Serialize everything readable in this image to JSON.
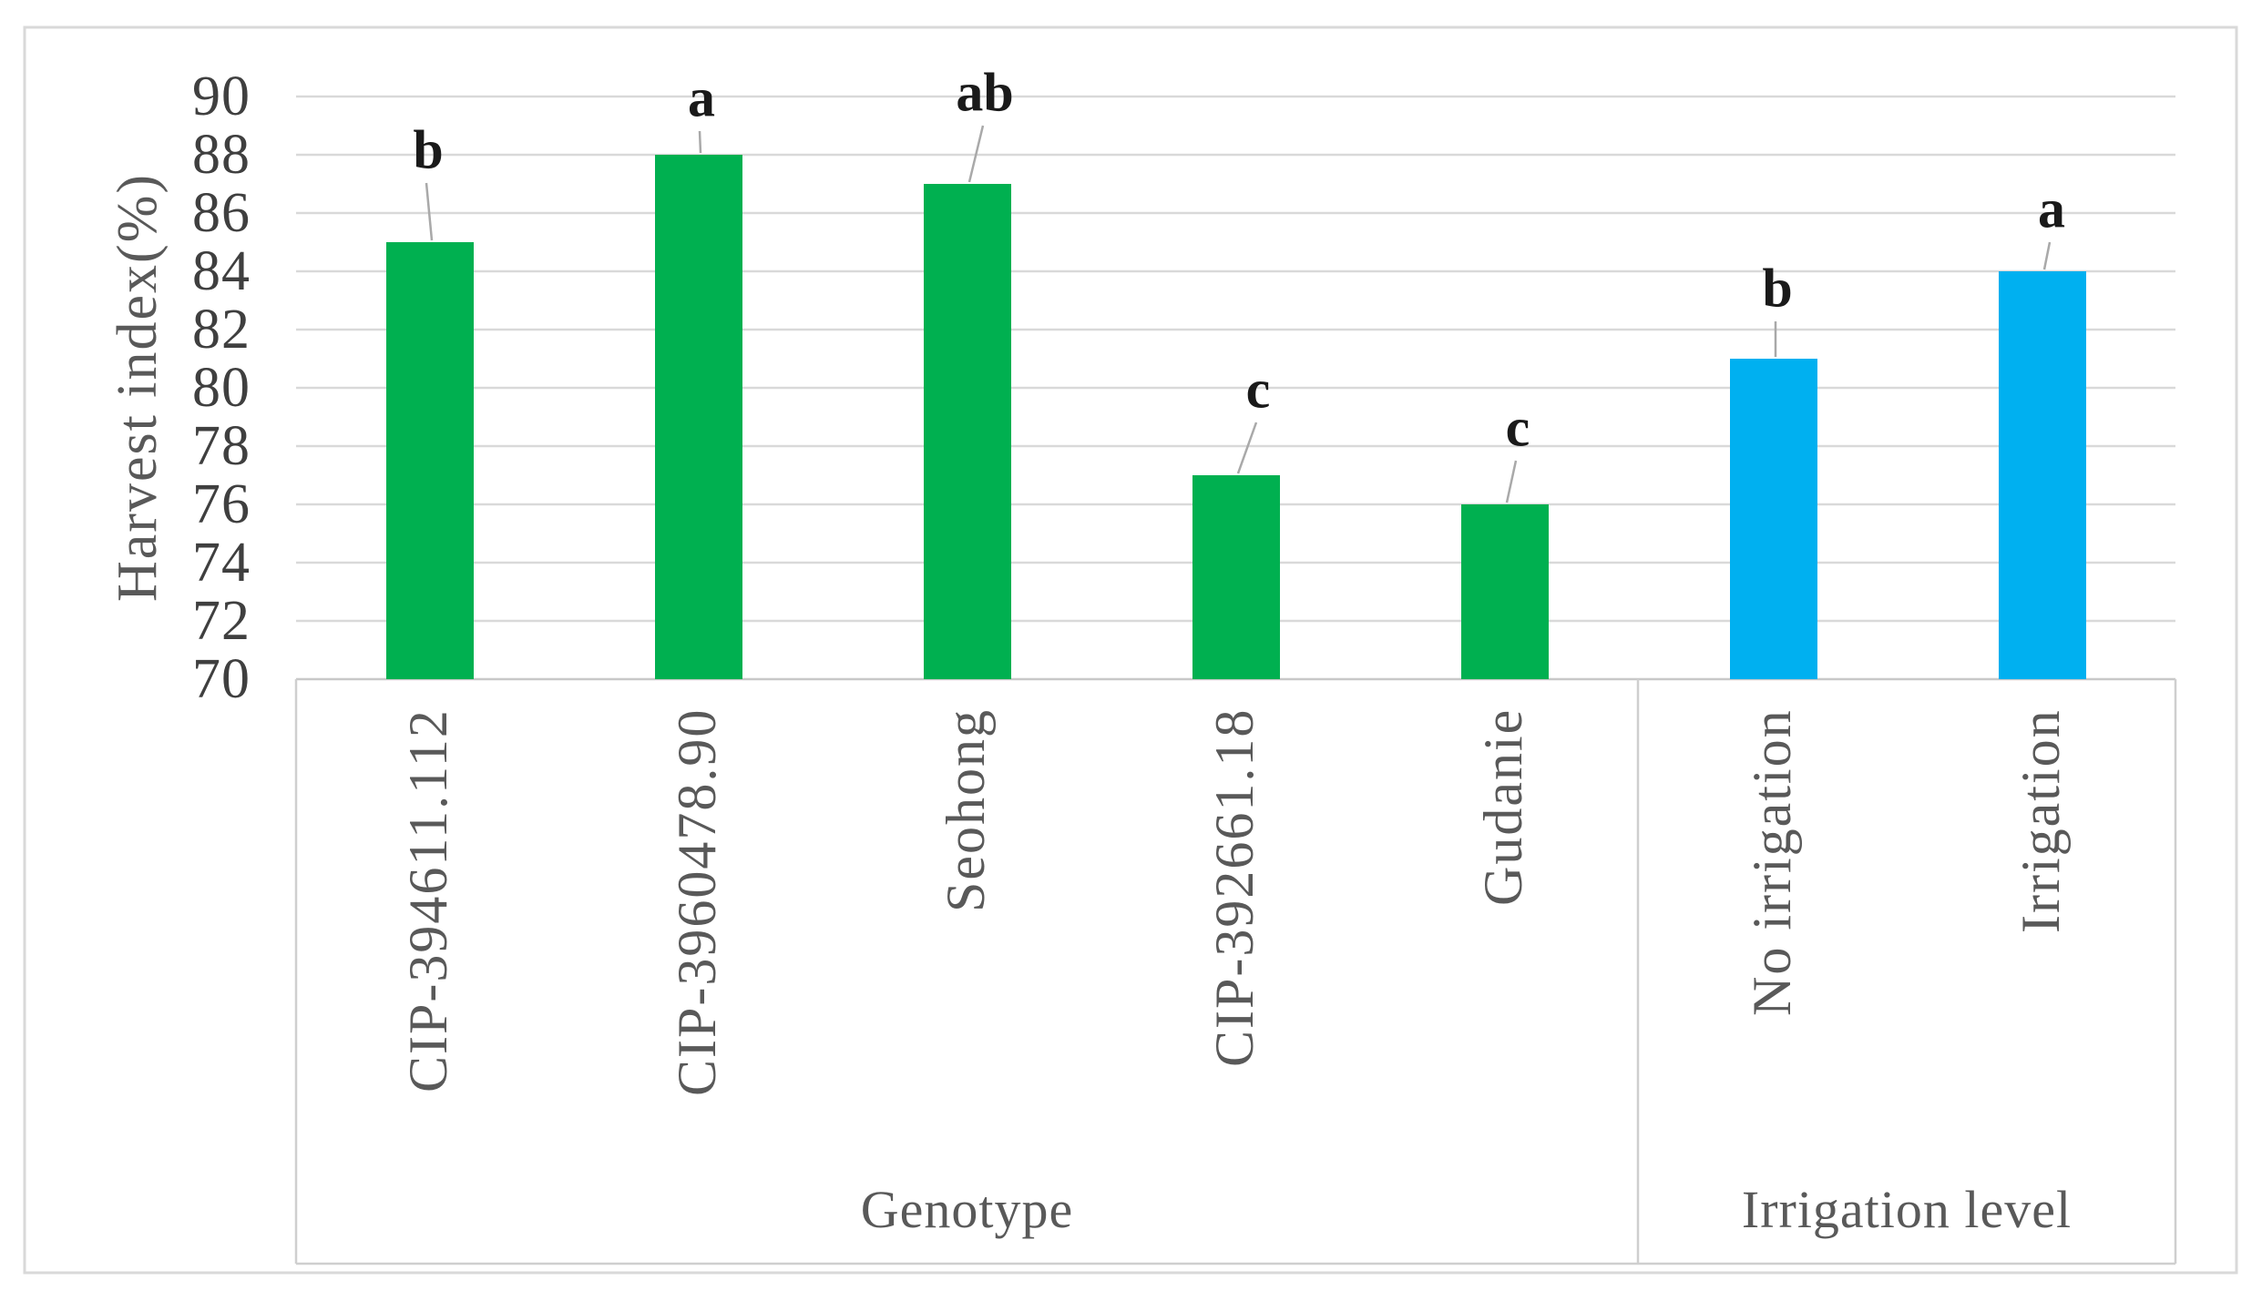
{
  "figure": {
    "y_axis": {
      "title": "Harvest index(%)",
      "min": 70,
      "max": 90,
      "step": 2
    },
    "groups": [
      {
        "label": "Genotype"
      },
      {
        "label": "Irrigation level"
      }
    ],
    "colors": {
      "genotype_bar": "#00B050",
      "irrigation_bar": "#00B0F0",
      "gridline": "#d9d9d9",
      "axis_line": "#c8c8c8",
      "box_line": "#cfcfcf",
      "outer_border": "#d9d9d9",
      "leader_line": "#a9a9a9",
      "tick_text": "#3f3f3f",
      "label_text": "#595959",
      "letter_text": "#1a1a1a"
    }
  },
  "chart_data": {
    "type": "bar",
    "title": "",
    "xlabel": "",
    "ylabel": "Harvest index(%)",
    "ylim": [
      70,
      90
    ],
    "ytick_step": 2,
    "grid": true,
    "legend_position": "none",
    "categories": [
      "CIP-394611.112",
      "CIP-3960478.90",
      "Seohong",
      "CIP-392661.18",
      "Gudanie",
      "No irrigation",
      "Irrigation"
    ],
    "values": [
      85,
      88,
      87,
      77,
      76,
      81,
      84
    ],
    "significance_letters": [
      "b",
      "a",
      "ab",
      "c",
      "c",
      "b",
      "a"
    ],
    "category_groups": [
      "Genotype",
      "Genotype",
      "Genotype",
      "Genotype",
      "Genotype",
      "Irrigation level",
      "Irrigation level"
    ],
    "group_axis_labels": [
      "Genotype",
      "Irrigation level"
    ]
  }
}
